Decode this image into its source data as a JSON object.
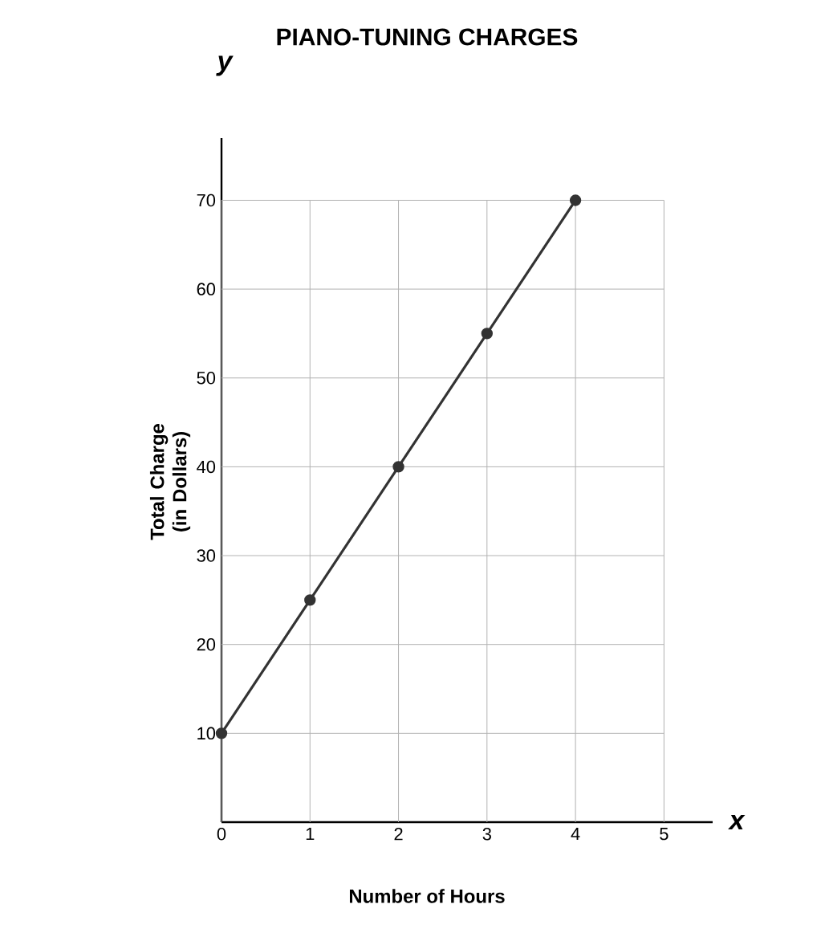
{
  "chart_data": {
    "type": "line",
    "title": "PIANO-TUNING CHARGES",
    "xlabel": "Number of Hours",
    "ylabel": "Total Charge (in Dollars)",
    "annotations": [
      "y",
      "x"
    ],
    "x": [
      0,
      1,
      2,
      3,
      4
    ],
    "series": [
      {
        "color": "#333333",
        "values": [
          10,
          25,
          40,
          55,
          70
        ]
      }
    ],
    "xlim": [
      0,
      5.55
    ],
    "ylim": [
      0,
      77
    ],
    "xticks": [
      0,
      1,
      2,
      3,
      4,
      5
    ],
    "yticks": [
      10,
      20,
      30,
      40,
      50,
      60,
      70
    ],
    "grid": true,
    "marker": "circle",
    "line_style": "solid"
  }
}
